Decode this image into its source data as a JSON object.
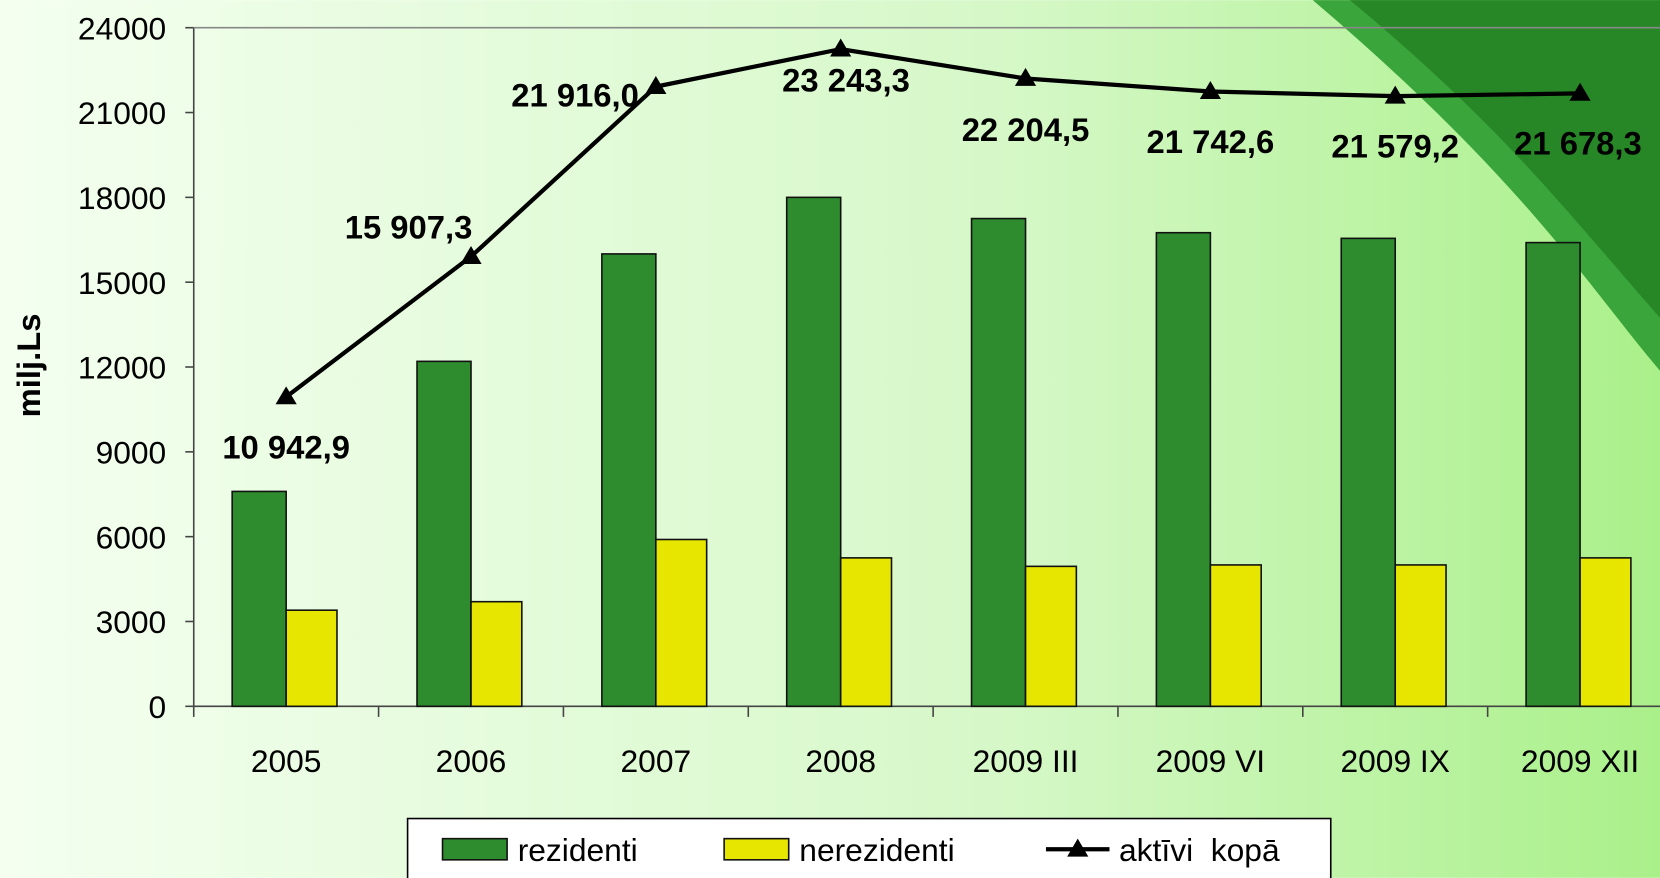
{
  "chart_data": {
    "type": "bar",
    "y_label": "milj.Ls",
    "categories": [
      "2005",
      "2006",
      "2007",
      "2008",
      "2009 III",
      "2009 VI",
      "2009 IX",
      "2009 XII"
    ],
    "series": [
      {
        "name": "rezidenti",
        "color": "#2e8b2e",
        "values": [
          7600,
          12200,
          16000,
          18000,
          17250,
          16750,
          16550,
          16400
        ]
      },
      {
        "name": "nerezidenti",
        "color": "#e6e600",
        "values": [
          3400,
          3700,
          5900,
          5250,
          4950,
          5000,
          5000,
          5250
        ]
      },
      {
        "name": "aktīvi  kopā",
        "type": "line",
        "color": "#000000",
        "values": [
          10942.9,
          15907.3,
          21916.0,
          23243.3,
          22204.5,
          21742.6,
          21579.2,
          21678.3
        ],
        "value_labels": [
          "10 942,9",
          "15 907,3",
          "21 916,0",
          "23 243,3",
          "22 204,5",
          "21 742,6",
          "21 579,2",
          "21 678,3"
        ]
      }
    ],
    "ylim": [
      0,
      24000
    ],
    "yticks": [
      0,
      3000,
      6000,
      9000,
      12000,
      15000,
      18000,
      21000,
      24000
    ],
    "grid": false,
    "legend": "bottom"
  }
}
